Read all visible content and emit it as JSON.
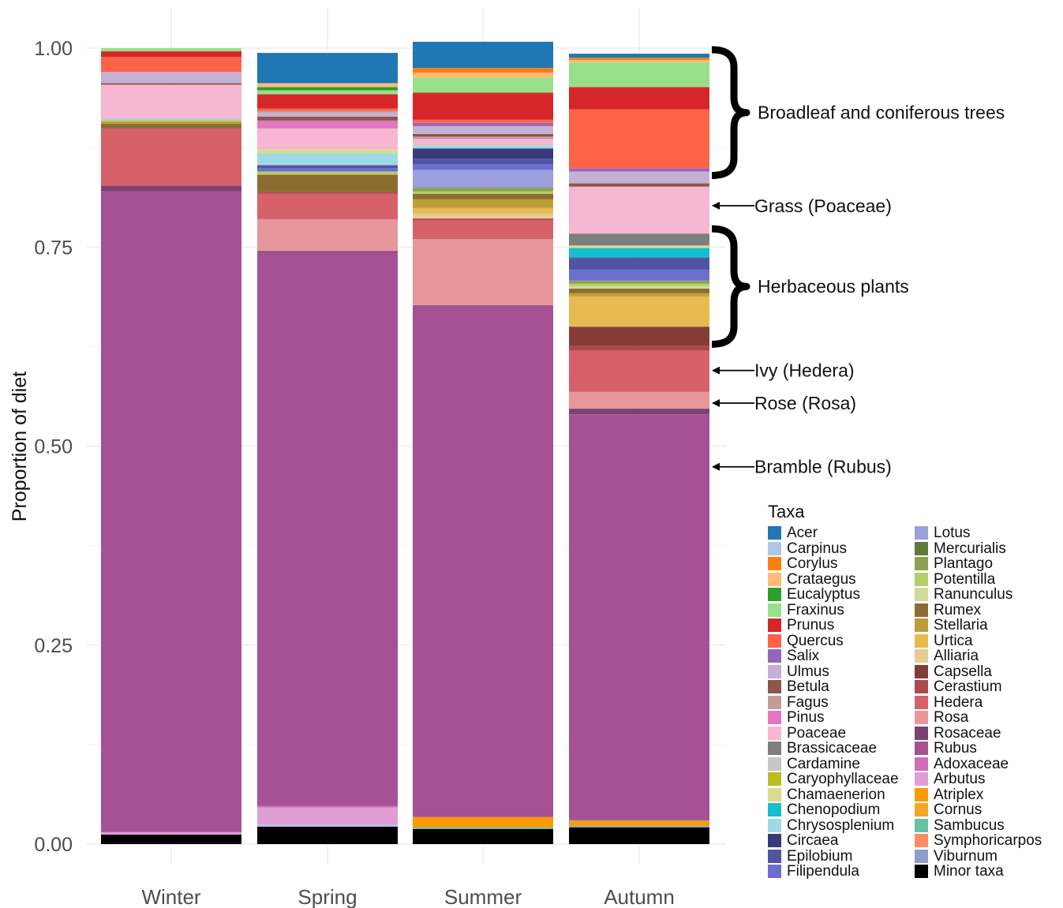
{
  "chart_data": {
    "type": "bar",
    "stacked": true,
    "ylabel": "Proportion of diet",
    "xlabel": "",
    "ylim": [
      0,
      1
    ],
    "yticks": [
      "0.00",
      "0.25",
      "0.50",
      "0.75",
      "1.00"
    ],
    "grid": true,
    "legend_position": "right",
    "legend_title": "Taxa",
    "categories": [
      "Winter",
      "Spring",
      "Summer",
      "Autumn"
    ],
    "taxa": [
      {
        "name": "Acer",
        "color": "#1f77b4"
      },
      {
        "name": "Carpinus",
        "color": "#aec7e8"
      },
      {
        "name": "Corylus",
        "color": "#ff7f0e"
      },
      {
        "name": "Crataegus",
        "color": "#ffbb78"
      },
      {
        "name": "Eucalyptus",
        "color": "#2ca02c"
      },
      {
        "name": "Fraxinus",
        "color": "#98df8a"
      },
      {
        "name": "Prunus",
        "color": "#d62728"
      },
      {
        "name": "Quercus",
        "color": "#ff6347"
      },
      {
        "name": "Salix",
        "color": "#9467bd"
      },
      {
        "name": "Ulmus",
        "color": "#c5b0d5"
      },
      {
        "name": "Betula",
        "color": "#8c564b"
      },
      {
        "name": "Fagus",
        "color": "#c49c94"
      },
      {
        "name": "Pinus",
        "color": "#e377c2"
      },
      {
        "name": "Poaceae",
        "color": "#f7b6d2"
      },
      {
        "name": "Brassicaceae",
        "color": "#7f7f7f"
      },
      {
        "name": "Cardamine",
        "color": "#c7c7c7"
      },
      {
        "name": "Caryophyllaceae",
        "color": "#bcbd22"
      },
      {
        "name": "Chamaenerion",
        "color": "#dbdb8d"
      },
      {
        "name": "Chenopodium",
        "color": "#17becf"
      },
      {
        "name": "Chrysosplenium",
        "color": "#9edae5"
      },
      {
        "name": "Circaea",
        "color": "#393b79"
      },
      {
        "name": "Epilobium",
        "color": "#5254a3"
      },
      {
        "name": "Filipendula",
        "color": "#6b6ecf"
      },
      {
        "name": "Lotus",
        "color": "#9c9ede"
      },
      {
        "name": "Mercurialis",
        "color": "#637939"
      },
      {
        "name": "Plantago",
        "color": "#8ca252"
      },
      {
        "name": "Potentilla",
        "color": "#b5cf6b"
      },
      {
        "name": "Ranunculus",
        "color": "#cedb9c"
      },
      {
        "name": "Rumex",
        "color": "#8c6d31"
      },
      {
        "name": "Stellaria",
        "color": "#bd9e39"
      },
      {
        "name": "Urtica",
        "color": "#e7ba52"
      },
      {
        "name": "Alliaria",
        "color": "#e7cb94"
      },
      {
        "name": "Capsella",
        "color": "#843c39"
      },
      {
        "name": "Cerastium",
        "color": "#ad494a"
      },
      {
        "name": "Hedera",
        "color": "#d6616b"
      },
      {
        "name": "Rosa",
        "color": "#e7969c"
      },
      {
        "name": "Rosaceae",
        "color": "#7b4173"
      },
      {
        "name": "Rubus",
        "color": "#a55194"
      },
      {
        "name": "Adoxaceae",
        "color": "#ce6dbd"
      },
      {
        "name": "Arbutus",
        "color": "#de9ed6"
      },
      {
        "name": "Atriplex",
        "color": "#ff9900"
      },
      {
        "name": "Cornus",
        "color": "#f5a623"
      },
      {
        "name": "Sambucus",
        "color": "#66c2a5"
      },
      {
        "name": "Symphoricarpos",
        "color": "#fc8d62"
      },
      {
        "name": "Viburnum",
        "color": "#8da0cb"
      },
      {
        "name": "Minor taxa",
        "color": "#000000"
      }
    ],
    "stacks": [
      {
        "category": "Winter",
        "segments": [
          [
            "Minor taxa",
            0.012
          ],
          [
            "Arbutus",
            0.003
          ],
          [
            "Rubus",
            0.805
          ],
          [
            "Rosaceae",
            0.007
          ],
          [
            "Hedera",
            0.072
          ],
          [
            "Rumex",
            0.006
          ],
          [
            "Stellaria",
            0.003
          ],
          [
            "Potentilla",
            0.002
          ],
          [
            "Carpinus",
            0.002
          ],
          [
            "Poaceae",
            0.042
          ],
          [
            "Betula",
            0.002
          ],
          [
            "Ulmus",
            0.014
          ],
          [
            "Quercus",
            0.019
          ],
          [
            "Prunus",
            0.007
          ],
          [
            "Fraxinus",
            0.004
          ]
        ]
      },
      {
        "category": "Spring",
        "segments": [
          [
            "Minor taxa",
            0.022
          ],
          [
            "Carpinus",
            0.002
          ],
          [
            "Arbutus",
            0.022
          ],
          [
            "Adoxaceae",
            0.002
          ],
          [
            "Rubus",
            0.695
          ],
          [
            "Rosaceae",
            0.002
          ],
          [
            "Rosa",
            0.04
          ],
          [
            "Hedera",
            0.032
          ],
          [
            "Cerastium",
            0.002
          ],
          [
            "Rumex",
            0.022
          ],
          [
            "Potentilla",
            0.004
          ],
          [
            "Filipendula",
            0.004
          ],
          [
            "Epilobium",
            0.004
          ],
          [
            "Chrysosplenium",
            0.015
          ],
          [
            "Chamaenerion",
            0.005
          ],
          [
            "Poaceae",
            0.026
          ],
          [
            "Pinus",
            0.01
          ],
          [
            "Betula",
            0.005
          ],
          [
            "Ulmus",
            0.005
          ],
          [
            "Fagus",
            0.002
          ],
          [
            "Quercus",
            0.003
          ],
          [
            "Prunus",
            0.018
          ],
          [
            "Fraxinus",
            0.005
          ],
          [
            "Eucalyptus",
            0.004
          ],
          [
            "Crataegus",
            0.005
          ],
          [
            "Acer",
            0.038
          ]
        ]
      },
      {
        "category": "Summer",
        "segments": [
          [
            "Minor taxa",
            0.019
          ],
          [
            "Sambucus",
            0.002
          ],
          [
            "Atriplex",
            0.013
          ],
          [
            "Rubus",
            0.642
          ],
          [
            "Rosaceae",
            0.001
          ],
          [
            "Rosa",
            0.083
          ],
          [
            "Hedera",
            0.024
          ],
          [
            "Cerastium",
            0.002
          ],
          [
            "Alliaria",
            0.006
          ],
          [
            "Urtica",
            0.007
          ],
          [
            "Stellaria",
            0.011
          ],
          [
            "Rumex",
            0.007
          ],
          [
            "Potentilla",
            0.003
          ],
          [
            "Plantago",
            0.005
          ],
          [
            "Lotus",
            0.022
          ],
          [
            "Filipendula",
            0.007
          ],
          [
            "Epilobium",
            0.007
          ],
          [
            "Circaea",
            0.013
          ],
          [
            "Chrysosplenium",
            0.004
          ],
          [
            "Poaceae",
            0.008
          ],
          [
            "Fagus",
            0.003
          ],
          [
            "Betula",
            0.003
          ],
          [
            "Ulmus",
            0.01
          ],
          [
            "Salix",
            0.004
          ],
          [
            "Quercus",
            0.004
          ],
          [
            "Prunus",
            0.034
          ],
          [
            "Fraxinus",
            0.019
          ],
          [
            "Crataegus",
            0.006
          ],
          [
            "Corylus",
            0.006
          ],
          [
            "Acer",
            0.033
          ]
        ]
      },
      {
        "category": "Autumn",
        "segments": [
          [
            "Minor taxa",
            0.021
          ],
          [
            "Viburnum",
            0.002
          ],
          [
            "Atriplex",
            0.005
          ],
          [
            "Stellaria",
            0.002
          ],
          [
            "Rubus",
            0.51
          ],
          [
            "Rosaceae",
            0.007
          ],
          [
            "Rosa",
            0.021
          ],
          [
            "Hedera",
            0.052
          ],
          [
            "Cerastium",
            0.006
          ],
          [
            "Capsella",
            0.024
          ],
          [
            "Urtica",
            0.038
          ],
          [
            "Stellaria",
            0.004
          ],
          [
            "Rumex",
            0.006
          ],
          [
            "Ranunculus",
            0.003
          ],
          [
            "Potentilla",
            0.003
          ],
          [
            "Plantago",
            0.004
          ],
          [
            "Filipendula",
            0.014
          ],
          [
            "Epilobium",
            0.015
          ],
          [
            "Chenopodium",
            0.012
          ],
          [
            "Chamaenerion",
            0.003
          ],
          [
            "Brassicaceae",
            0.015
          ],
          [
            "Poaceae",
            0.059
          ],
          [
            "Betula",
            0.004
          ],
          [
            "Ulmus",
            0.015
          ],
          [
            "Salix",
            0.004
          ],
          [
            "Quercus",
            0.074
          ],
          [
            "Prunus",
            0.028
          ],
          [
            "Fraxinus",
            0.031
          ],
          [
            "Crataegus",
            0.003
          ],
          [
            "Corylus",
            0.003
          ],
          [
            "Acer",
            0.005
          ]
        ]
      }
    ],
    "annotations": [
      {
        "label": "Broadleaf and coniferous trees",
        "kind": "brace",
        "from": 0.838,
        "to": 1.0
      },
      {
        "label": "Grass (Poaceae)",
        "kind": "arrow",
        "at": 0.802
      },
      {
        "label": "Herbaceous plants",
        "kind": "brace",
        "from": 0.626,
        "to": 0.775
      },
      {
        "label": "Ivy (Hedera)",
        "kind": "arrow",
        "at": 0.595
      },
      {
        "label": "Rose (Rosa)",
        "kind": "arrow",
        "at": 0.554
      },
      {
        "label": "Bramble (Rubus)",
        "kind": "arrow",
        "at": 0.474
      }
    ]
  }
}
